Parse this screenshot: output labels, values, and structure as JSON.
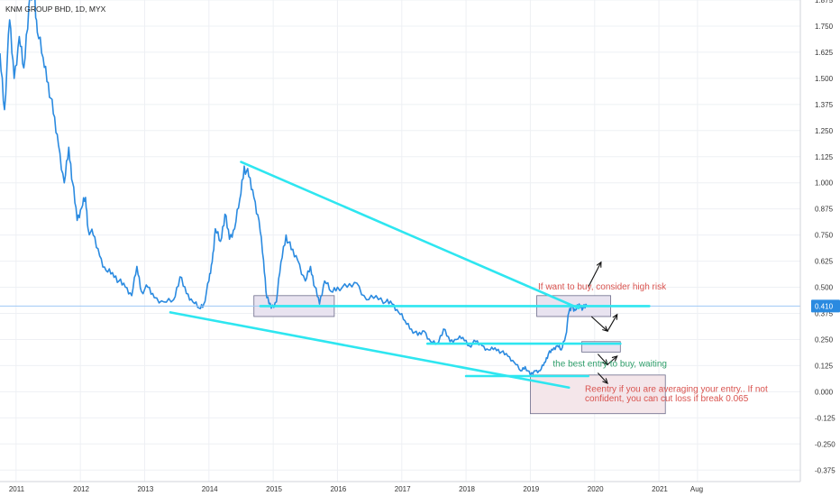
{
  "chart_data": {
    "type": "line",
    "title": "KNM GROUP BHD, 1D, MYX",
    "xlabel": "",
    "ylabel": "",
    "ylim": [
      -0.43,
      1.875
    ],
    "grid": true,
    "y_ticks": [
      "1.875",
      "1.750",
      "1.625",
      "1.500",
      "1.375",
      "1.250",
      "1.125",
      "1.000",
      "0.875",
      "0.750",
      "0.625",
      "0.500",
      "0.375",
      "0.250",
      "0.125",
      "0.000",
      "-0.125",
      "-0.250",
      "-0.375"
    ],
    "y_tick_values": [
      1.875,
      1.75,
      1.625,
      1.5,
      1.375,
      1.25,
      1.125,
      1.0,
      0.875,
      0.75,
      0.625,
      0.5,
      0.375,
      0.25,
      0.125,
      0.0,
      -0.125,
      -0.25,
      -0.375
    ],
    "x_ticks": [
      "2011",
      "2012",
      "2013",
      "2014",
      "2015",
      "2016",
      "2017",
      "2018",
      "2019",
      "2020",
      "2021",
      "Aug"
    ],
    "x_tick_values": [
      2011.0,
      2012.0,
      2013.0,
      2014.0,
      2015.0,
      2016.0,
      2017.0,
      2018.0,
      2019.0,
      2020.0,
      2021.0,
      2021.6
    ],
    "xlim": [
      2010.75,
      2023.2
    ],
    "last_price": {
      "label": "0.410",
      "value": 0.41
    },
    "series": [
      {
        "values": [
          [
            2010.75,
            1.62
          ],
          [
            2010.82,
            1.35
          ],
          [
            2010.9,
            1.78
          ],
          [
            2010.97,
            1.5
          ],
          [
            2011.05,
            1.7
          ],
          [
            2011.12,
            1.55
          ],
          [
            2011.2,
            1.85
          ],
          [
            2011.28,
            1.92
          ],
          [
            2011.33,
            1.72
          ],
          [
            2011.42,
            1.6
          ],
          [
            2011.5,
            1.48
          ],
          [
            2011.58,
            1.33
          ],
          [
            2011.66,
            1.18
          ],
          [
            2011.75,
            1.0
          ],
          [
            2011.82,
            1.17
          ],
          [
            2011.88,
            1.0
          ],
          [
            2011.95,
            0.82
          ],
          [
            2012.02,
            0.88
          ],
          [
            2012.08,
            0.93
          ],
          [
            2012.12,
            0.78
          ],
          [
            2012.2,
            0.75
          ],
          [
            2012.3,
            0.65
          ],
          [
            2012.4,
            0.58
          ],
          [
            2012.5,
            0.57
          ],
          [
            2012.6,
            0.53
          ],
          [
            2012.7,
            0.5
          ],
          [
            2012.8,
            0.46
          ],
          [
            2012.88,
            0.6
          ],
          [
            2012.95,
            0.48
          ],
          [
            2013.05,
            0.5
          ],
          [
            2013.15,
            0.45
          ],
          [
            2013.3,
            0.43
          ],
          [
            2013.45,
            0.44
          ],
          [
            2013.55,
            0.55
          ],
          [
            2013.65,
            0.47
          ],
          [
            2013.75,
            0.43
          ],
          [
            2013.85,
            0.4
          ],
          [
            2013.92,
            0.42
          ],
          [
            2014.0,
            0.53
          ],
          [
            2014.05,
            0.62
          ],
          [
            2014.1,
            0.78
          ],
          [
            2014.18,
            0.72
          ],
          [
            2014.25,
            0.85
          ],
          [
            2014.32,
            0.73
          ],
          [
            2014.4,
            0.78
          ],
          [
            2014.48,
            0.92
          ],
          [
            2014.55,
            1.08
          ],
          [
            2014.62,
            1.03
          ],
          [
            2014.7,
            0.93
          ],
          [
            2014.78,
            0.82
          ],
          [
            2014.85,
            0.63
          ],
          [
            2014.9,
            0.45
          ],
          [
            2014.97,
            0.4
          ],
          [
            2015.05,
            0.43
          ],
          [
            2015.12,
            0.62
          ],
          [
            2015.2,
            0.75
          ],
          [
            2015.28,
            0.68
          ],
          [
            2015.38,
            0.63
          ],
          [
            2015.5,
            0.53
          ],
          [
            2015.58,
            0.6
          ],
          [
            2015.65,
            0.5
          ],
          [
            2015.72,
            0.42
          ],
          [
            2015.8,
            0.53
          ],
          [
            2015.9,
            0.48
          ],
          [
            2016.0,
            0.5
          ],
          [
            2016.15,
            0.5
          ],
          [
            2016.3,
            0.52
          ],
          [
            2016.45,
            0.44
          ],
          [
            2016.6,
            0.46
          ],
          [
            2016.75,
            0.43
          ],
          [
            2016.85,
            0.42
          ],
          [
            2016.95,
            0.38
          ],
          [
            2017.05,
            0.34
          ],
          [
            2017.15,
            0.3
          ],
          [
            2017.25,
            0.27
          ],
          [
            2017.35,
            0.29
          ],
          [
            2017.45,
            0.24
          ],
          [
            2017.55,
            0.23
          ],
          [
            2017.65,
            0.3
          ],
          [
            2017.75,
            0.24
          ],
          [
            2017.85,
            0.25
          ],
          [
            2017.95,
            0.26
          ],
          [
            2018.05,
            0.22
          ],
          [
            2018.15,
            0.24
          ],
          [
            2018.25,
            0.22
          ],
          [
            2018.35,
            0.2
          ],
          [
            2018.45,
            0.21
          ],
          [
            2018.55,
            0.19
          ],
          [
            2018.65,
            0.17
          ],
          [
            2018.75,
            0.14
          ],
          [
            2018.85,
            0.1
          ],
          [
            2018.92,
            0.12
          ],
          [
            2019.0,
            0.08
          ],
          [
            2019.08,
            0.1
          ],
          [
            2019.15,
            0.1
          ],
          [
            2019.22,
            0.14
          ],
          [
            2019.28,
            0.18
          ],
          [
            2019.35,
            0.2
          ],
          [
            2019.42,
            0.22
          ],
          [
            2019.48,
            0.2
          ],
          [
            2019.55,
            0.27
          ],
          [
            2019.6,
            0.38
          ],
          [
            2019.65,
            0.41
          ],
          [
            2019.7,
            0.39
          ],
          [
            2019.76,
            0.42
          ],
          [
            2019.82,
            0.4
          ],
          [
            2019.88,
            0.41
          ]
        ]
      }
    ],
    "trendlines": [
      {
        "from": [
          2014.5,
          1.1
        ],
        "to": [
          2019.75,
          0.4
        ]
      },
      {
        "from": [
          2013.4,
          0.38
        ],
        "to": [
          2019.6,
          0.02
        ]
      },
      {
        "from": [
          2014.8,
          0.41
        ],
        "to": [
          2020.85,
          0.41
        ]
      },
      {
        "from": [
          2017.4,
          0.23
        ],
        "to": [
          2020.4,
          0.23
        ]
      },
      {
        "from": [
          2018.0,
          0.075
        ],
        "to": [
          2019.9,
          0.075
        ]
      }
    ],
    "boxes": [
      {
        "from": [
          2014.7,
          0.46
        ],
        "to": [
          2015.95,
          0.36
        ],
        "fill": "#e8e3f0"
      },
      {
        "from": [
          2019.1,
          0.46
        ],
        "to": [
          2020.25,
          0.36
        ],
        "fill": "#e8e3f0"
      },
      {
        "from": [
          2019.8,
          0.24
        ],
        "to": [
          2020.4,
          0.19
        ],
        "fill": "#e8e3f0"
      },
      {
        "from": [
          2019.0,
          0.08
        ],
        "to": [
          2021.1,
          -0.105
        ],
        "fill": "#f4e6ea"
      }
    ],
    "arrows": [
      {
        "from": [
          2019.9,
          0.5
        ],
        "to": [
          2020.1,
          0.62
        ]
      },
      {
        "from": [
          2019.95,
          0.36
        ],
        "to": [
          2020.2,
          0.29
        ]
      },
      {
        "from": [
          2020.2,
          0.29
        ],
        "to": [
          2020.35,
          0.37
        ]
      },
      {
        "from": [
          2020.05,
          0.18
        ],
        "to": [
          2020.2,
          0.13
        ]
      },
      {
        "from": [
          2020.2,
          0.13
        ],
        "to": [
          2020.35,
          0.17
        ]
      },
      {
        "from": [
          2020.05,
          0.09
        ],
        "to": [
          2020.2,
          0.04
        ]
      }
    ],
    "annotations": [
      {
        "text": "If want to buy, consider high risk",
        "x": 2019.12,
        "y": 0.49,
        "color": "#d9534f"
      },
      {
        "text": "the best entry to buy, waiting",
        "x": 2019.35,
        "y": 0.12,
        "color": "#2e9e6a"
      },
      {
        "text": "Reentry if you are averaging your entry.. If not",
        "x": 2019.85,
        "y": 0.0,
        "color": "#d9534f"
      },
      {
        "text": "confident, you can cut loss if break 0.065",
        "x": 2019.85,
        "y": -0.045,
        "color": "#d9534f"
      }
    ],
    "colors": {
      "price_line": "#2a8ae0",
      "trendline": "#2ee6f0",
      "price_line_h": "#9fc9f5",
      "label_bg": "#2a8ae0",
      "grid": "#eef0f4"
    }
  }
}
